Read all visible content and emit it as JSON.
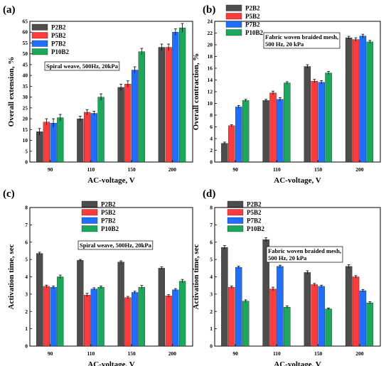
{
  "chart_data": [
    {
      "type": "bar",
      "panel_label": "(a)",
      "categories": [
        "90",
        "110",
        "150",
        "200"
      ],
      "series": [
        {
          "name": "P2B2",
          "color": "#4d4d4d",
          "values": [
            14,
            20,
            34.5,
            53
          ],
          "errors": [
            1.5,
            1.2,
            1.5,
            1.5
          ]
        },
        {
          "name": "P5B2",
          "color": "#ff3b3b",
          "values": [
            18.5,
            23,
            36,
            53
          ],
          "errors": [
            1.5,
            1.2,
            1.5,
            1.5
          ]
        },
        {
          "name": "P7B2",
          "color": "#1e6fff",
          "values": [
            18,
            22.5,
            42.5,
            60
          ],
          "errors": [
            2,
            1,
            1.5,
            1.5
          ]
        },
        {
          "name": "P10B2",
          "color": "#1aa85a",
          "values": [
            20.5,
            30,
            51,
            62
          ],
          "errors": [
            1.5,
            1.5,
            1.5,
            2
          ]
        }
      ],
      "xlabel": "AC-voltage, V",
      "ylabel": "Overall extension, %",
      "ylim": [
        0,
        65
      ],
      "yticks": [
        0,
        5,
        10,
        15,
        20,
        25,
        30,
        35,
        40,
        45,
        50,
        55,
        60,
        65
      ],
      "annotation": "Spiral weave, 500Hz, 20kPa",
      "legend_position": "top-left"
    },
    {
      "type": "bar",
      "panel_label": "(b)",
      "categories": [
        "90",
        "110",
        "150",
        "200"
      ],
      "series": [
        {
          "name": "P2B2",
          "color": "#4d4d4d",
          "values": [
            3.2,
            10.5,
            16.3,
            21.2
          ],
          "errors": [
            0.2,
            0.2,
            0.3,
            0.25
          ]
        },
        {
          "name": "P5B2",
          "color": "#ff3b3b",
          "values": [
            6.2,
            11.8,
            13.8,
            20.9
          ],
          "errors": [
            0.15,
            0.3,
            0.3,
            0.3
          ]
        },
        {
          "name": "P7B2",
          "color": "#1e6fff",
          "values": [
            9.4,
            10.7,
            13.6,
            21.5
          ],
          "errors": [
            0.25,
            0.3,
            0.3,
            0.3
          ]
        },
        {
          "name": "P10B2",
          "color": "#1aa85a",
          "values": [
            10.5,
            13.5,
            15.2,
            20.5
          ],
          "errors": [
            0.2,
            0.2,
            0.25,
            0.25
          ]
        }
      ],
      "xlabel": "AC-voltage, V",
      "ylabel": "Overall contraction, %",
      "ylim": [
        0,
        24
      ],
      "yticks": [
        0,
        2,
        4,
        6,
        8,
        10,
        12,
        14,
        16,
        18,
        20,
        22,
        24
      ],
      "annotation": [
        "Fabric woven braided mesh,",
        "500 Hz, 20 kPa"
      ],
      "legend_position": "top-left"
    },
    {
      "type": "bar",
      "panel_label": "(c)",
      "categories": [
        "90",
        "110",
        "150",
        "200"
      ],
      "series": [
        {
          "name": "P2B2",
          "color": "#4d4d4d",
          "values": [
            5.35,
            4.95,
            4.85,
            4.5
          ],
          "errors": [
            0.07,
            0.05,
            0.07,
            0.07
          ]
        },
        {
          "name": "P5B2",
          "color": "#ff3b3b",
          "values": [
            3.45,
            2.95,
            2.8,
            2.9
          ],
          "errors": [
            0.07,
            0.1,
            0.07,
            0.07
          ]
        },
        {
          "name": "P7B2",
          "color": "#1e6fff",
          "values": [
            3.4,
            3.3,
            3.1,
            3.25
          ],
          "errors": [
            0.07,
            0.07,
            0.07,
            0.07
          ]
        },
        {
          "name": "P10B2",
          "color": "#1aa85a",
          "values": [
            4.0,
            3.4,
            3.4,
            3.75
          ],
          "errors": [
            0.1,
            0.07,
            0.1,
            0.1
          ]
        }
      ],
      "xlabel": "AC-voltage, V",
      "ylabel": "Activation time, sec",
      "ylim": [
        0,
        8
      ],
      "yticks": [
        0,
        1,
        2,
        3,
        4,
        5,
        6,
        7,
        8
      ],
      "annotation": "Spiral weave, 500Hz, 20kPa",
      "legend_position": "top-center"
    },
    {
      "type": "bar",
      "panel_label": "(d)",
      "categories": [
        "90",
        "110",
        "150",
        "200"
      ],
      "series": [
        {
          "name": "P2B2",
          "color": "#4d4d4d",
          "values": [
            5.7,
            6.15,
            4.25,
            4.6
          ],
          "errors": [
            0.1,
            0.1,
            0.1,
            0.1
          ]
        },
        {
          "name": "P5B2",
          "color": "#ff3b3b",
          "values": [
            3.4,
            3.3,
            3.55,
            4.0
          ],
          "errors": [
            0.07,
            0.1,
            0.07,
            0.07
          ]
        },
        {
          "name": "P7B2",
          "color": "#1e6fff",
          "values": [
            4.55,
            4.6,
            3.45,
            3.2
          ],
          "errors": [
            0.07,
            0.07,
            0.07,
            0.07
          ]
        },
        {
          "name": "P10B2",
          "color": "#1aa85a",
          "values": [
            2.6,
            2.25,
            2.15,
            2.5
          ],
          "errors": [
            0.07,
            0.07,
            0.05,
            0.07
          ]
        }
      ],
      "xlabel": "AC-voltage, V",
      "ylabel": "Activation time, sec",
      "ylim": [
        0,
        8
      ],
      "yticks": [
        0,
        1,
        2,
        3,
        4,
        5,
        6,
        7,
        8
      ],
      "annotation": [
        "Fabric woven braided mesh,",
        "500 Hz, 20 kPa"
      ],
      "legend_position": "top-center"
    }
  ]
}
